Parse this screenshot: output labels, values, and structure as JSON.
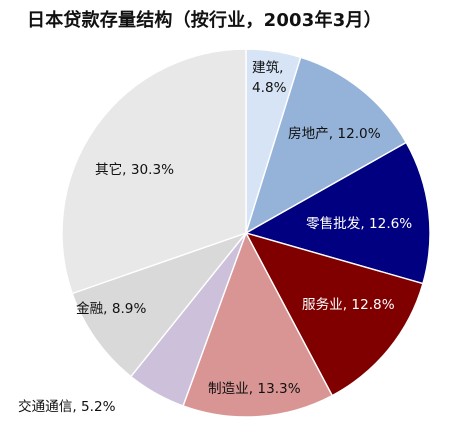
{
  "chart_data": {
    "type": "pie",
    "title": "日本贷款存量结构（按行业，2003年3月）",
    "slices": [
      {
        "label": "建筑, 4.8%",
        "value": 4.8,
        "color": "#d6e4f5",
        "text_color": "#111111"
      },
      {
        "label": "房地产, 12.0%",
        "value": 12.0,
        "color": "#95b3d8",
        "text_color": "#111111"
      },
      {
        "label": "零售批发, 12.6%",
        "value": 12.6,
        "color": "#000080",
        "text_color": "#ffffff"
      },
      {
        "label": "服务业, 12.8%",
        "value": 12.8,
        "color": "#800000",
        "text_color": "#ffffff"
      },
      {
        "label": "制造业, 13.3%",
        "value": 13.3,
        "color": "#d99594",
        "text_color": "#111111"
      },
      {
        "label": "交通通信, 5.2%",
        "value": 5.2,
        "color": "#ccc0da",
        "text_color": "#111111"
      },
      {
        "label": "金融, 8.9%",
        "value": 8.9,
        "color": "#d9d9d9",
        "text_color": "#111111"
      },
      {
        "label": "其它, 30.3%",
        "value": 30.3,
        "color": "#e8e8e8",
        "text_color": "#111111"
      }
    ]
  }
}
